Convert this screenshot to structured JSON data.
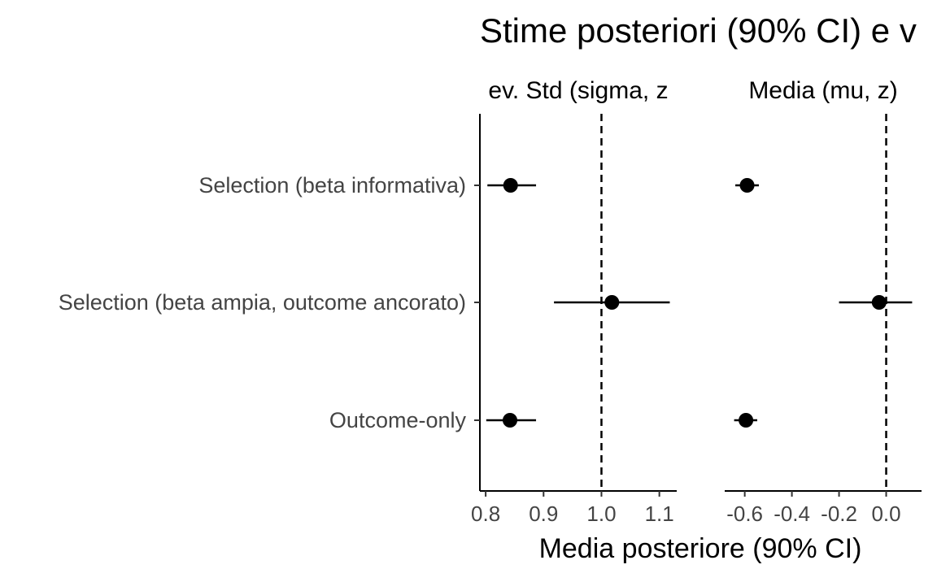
{
  "chart_data": {
    "type": "dot-interval",
    "title": "Stime posteriori (90% CI) e v",
    "xlabel": "Media posteriore (90% CI)",
    "ylabel": "",
    "models": [
      "Selection (beta informativa)",
      "Selection (beta ampia, outcome ancorato)",
      "Outcome-only"
    ],
    "grid": false,
    "panels": [
      {
        "strip_label": "ev. Std (sigma, z",
        "xlim": [
          0.79,
          1.13
        ],
        "ticks": [
          0.8,
          0.9,
          1.0,
          1.1
        ],
        "tick_labels": [
          "0.8",
          "0.9",
          "1.0",
          "1.1"
        ],
        "reference_line": 1.0,
        "points": [
          {
            "model": "Selection (beta informativa)",
            "estimate": 0.843,
            "lower": 0.803,
            "upper": 0.887
          },
          {
            "model": "Selection (beta ampia, outcome ancorato)",
            "estimate": 1.018,
            "lower": 0.918,
            "upper": 1.118
          },
          {
            "model": "Outcome-only",
            "estimate": 0.842,
            "lower": 0.801,
            "upper": 0.887
          }
        ]
      },
      {
        "strip_label": "Media (mu, z)",
        "xlim": [
          -0.685,
          0.15
        ],
        "ticks": [
          -0.6,
          -0.4,
          -0.2,
          0.0
        ],
        "tick_labels": [
          "-0.6",
          "-0.4",
          "-0.2",
          "0.0"
        ],
        "reference_line": 0.0,
        "points": [
          {
            "model": "Selection (beta informativa)",
            "estimate": -0.59,
            "lower": -0.64,
            "upper": -0.54
          },
          {
            "model": "Selection (beta ampia, outcome ancorato)",
            "estimate": -0.03,
            "lower": -0.2,
            "upper": 0.11
          },
          {
            "model": "Outcome-only",
            "estimate": -0.595,
            "lower": -0.645,
            "upper": -0.547
          }
        ]
      }
    ]
  }
}
